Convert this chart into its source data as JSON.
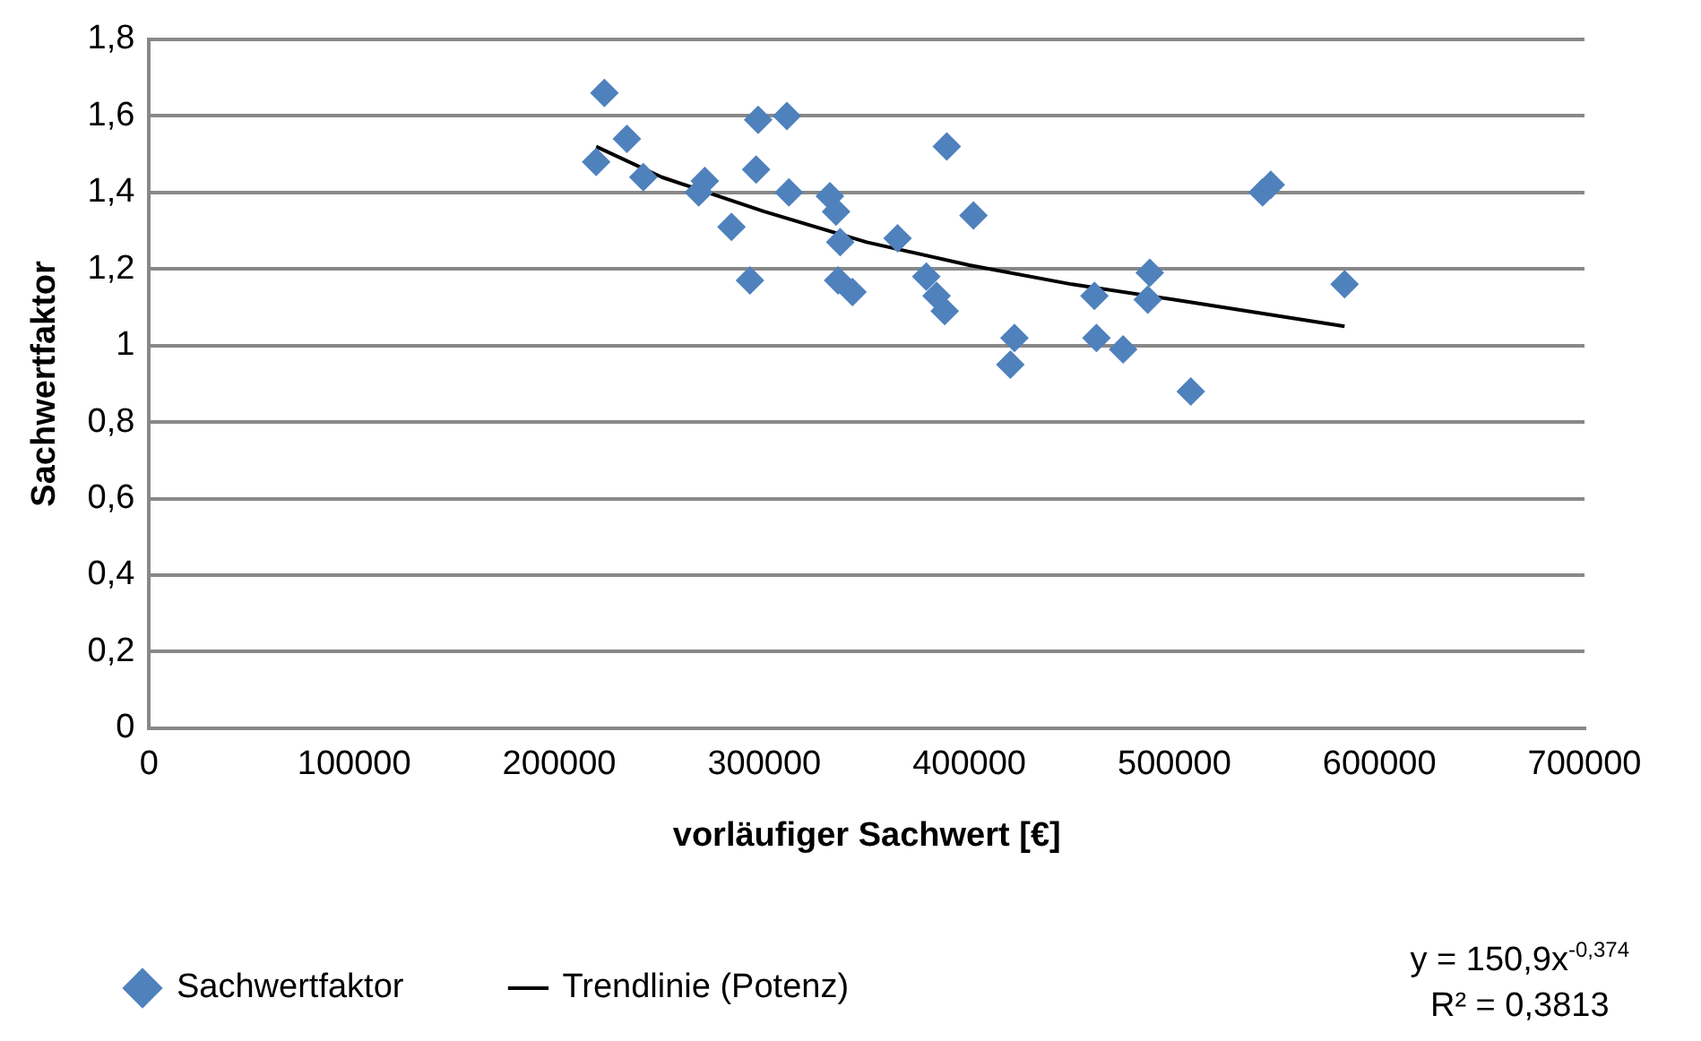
{
  "chart_data": {
    "type": "scatter",
    "xlabel": "vorläufiger Sachwert [€]",
    "ylabel": "Sachwertfaktor",
    "xlim": [
      0,
      700000
    ],
    "xticks": [
      0,
      100000,
      200000,
      300000,
      400000,
      500000,
      600000,
      700000
    ],
    "ylim": [
      0,
      1.8
    ],
    "yticks": [
      0,
      {
        "value": 0.2,
        "label": "0,2"
      },
      {
        "value": 0.4,
        "label": "0,4"
      },
      {
        "value": 0.6,
        "label": "0,6"
      },
      {
        "value": 0.8,
        "label": "0,8"
      },
      1,
      {
        "value": 1.2,
        "label": "1,2"
      },
      {
        "value": 1.4,
        "label": "1,4"
      },
      {
        "value": 1.6,
        "label": "1,6"
      },
      {
        "value": 1.8,
        "label": "1,8"
      }
    ],
    "grid": "y",
    "legend": "bottom",
    "marker": "diamond",
    "series": [
      {
        "name": "Sachwertfaktor",
        "color": "#4f81bd",
        "x": [
          218000,
          222000,
          233000,
          241000,
          268000,
          271000,
          284000,
          293000,
          297000,
          296000,
          311000,
          312000,
          332000,
          335000,
          337000,
          336000,
          343000,
          365000,
          379000,
          384000,
          389000,
          388000,
          402000,
          420000,
          422000,
          461000,
          462000,
          475000,
          488000,
          487000,
          508000,
          543000,
          547000,
          583000
        ],
        "values": [
          1.48,
          1.66,
          1.54,
          1.44,
          1.4,
          1.43,
          1.31,
          1.17,
          1.59,
          1.46,
          1.6,
          1.4,
          1.39,
          1.35,
          1.27,
          1.17,
          1.14,
          1.28,
          1.18,
          1.13,
          1.52,
          1.09,
          1.34,
          0.95,
          1.02,
          1.13,
          1.02,
          0.99,
          1.19,
          1.12,
          0.88,
          1.4,
          1.42,
          1.16
        ]
      },
      {
        "name": "Trendlinie (Potenz)",
        "color": "#000000",
        "type": "line",
        "marker": "none",
        "x": [
          218000,
          250000,
          300000,
          350000,
          400000,
          450000,
          500000,
          583000
        ],
        "values": [
          1.52,
          1.44,
          1.35,
          1.27,
          1.21,
          1.16,
          1.12,
          1.05
        ]
      }
    ],
    "annotations": [
      "y = 150,9x$^{-0,374}$",
      "R² = 0,3813"
    ]
  }
}
